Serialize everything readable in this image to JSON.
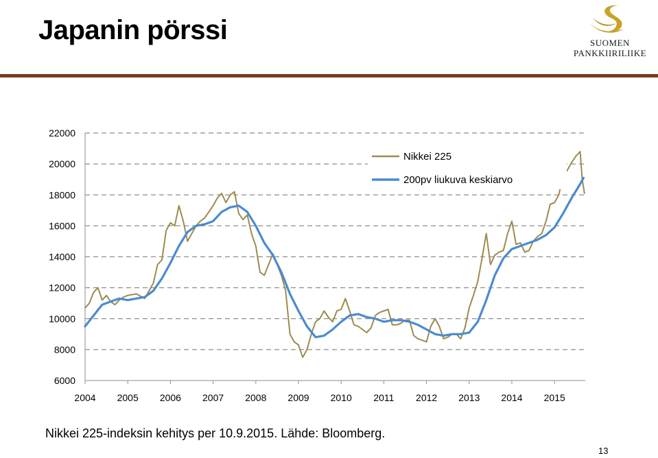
{
  "slide": {
    "title": "Japanin pörssi",
    "caption": "Nikkei 225-indeksin kehitys per 10.9.2015. Lähde: Bloomberg.",
    "page_number": "13"
  },
  "logo": {
    "line1": "SUOMEN",
    "line2": "PANKKIIRILIIKE",
    "accent_color": "#c9a227"
  },
  "chart_data": {
    "type": "line",
    "title": "",
    "xlabel": "",
    "ylabel": "",
    "xlim": [
      2004,
      2015.72
    ],
    "ylim": [
      6000,
      22000
    ],
    "x_ticks": [
      2004,
      2005,
      2006,
      2007,
      2008,
      2009,
      2010,
      2011,
      2012,
      2013,
      2014,
      2015
    ],
    "y_ticks": [
      6000,
      8000,
      10000,
      12000,
      14000,
      16000,
      18000,
      20000,
      22000
    ],
    "grid": "horizontal-dashed",
    "legend_position": "top-right",
    "series": [
      {
        "name": "Nikkei 225",
        "color": "#9c8b4e",
        "x": [
          2004.0,
          2004.1,
          2004.2,
          2004.3,
          2004.4,
          2004.5,
          2004.6,
          2004.7,
          2004.8,
          2004.9,
          2005.0,
          2005.2,
          2005.4,
          2005.5,
          2005.6,
          2005.7,
          2005.8,
          2005.9,
          2006.0,
          2006.1,
          2006.2,
          2006.3,
          2006.4,
          2006.5,
          2006.6,
          2006.7,
          2006.8,
          2006.9,
          2007.0,
          2007.1,
          2007.2,
          2007.3,
          2007.4,
          2007.5,
          2007.6,
          2007.7,
          2007.8,
          2007.9,
          2008.0,
          2008.1,
          2008.2,
          2008.3,
          2008.4,
          2008.5,
          2008.6,
          2008.7,
          2008.8,
          2008.9,
          2009.0,
          2009.1,
          2009.2,
          2009.3,
          2009.4,
          2009.5,
          2009.6,
          2009.7,
          2009.8,
          2009.9,
          2010.0,
          2010.1,
          2010.2,
          2010.3,
          2010.4,
          2010.5,
          2010.6,
          2010.7,
          2010.8,
          2010.9,
          2011.0,
          2011.1,
          2011.2,
          2011.3,
          2011.4,
          2011.5,
          2011.6,
          2011.7,
          2011.8,
          2011.9,
          2012.0,
          2012.1,
          2012.2,
          2012.3,
          2012.4,
          2012.5,
          2012.6,
          2012.7,
          2012.8,
          2012.9,
          2013.0,
          2013.1,
          2013.2,
          2013.3,
          2013.4,
          2013.5,
          2013.6,
          2013.7,
          2013.8,
          2013.9,
          2014.0,
          2014.1,
          2014.2,
          2014.3,
          2014.4,
          2014.5,
          2014.6,
          2014.7,
          2014.8,
          2014.9,
          2015.0,
          2015.1,
          2015.2,
          2015.3,
          2015.4,
          2015.5,
          2015.6,
          2015.65,
          2015.7
        ],
        "y": [
          10700,
          11000,
          11700,
          12000,
          11200,
          11500,
          11100,
          10900,
          11200,
          11400,
          11500,
          11600,
          11300,
          11800,
          12300,
          13500,
          13800,
          15700,
          16200,
          16000,
          17300,
          16300,
          15000,
          15500,
          16000,
          16300,
          16500,
          16900,
          17300,
          17800,
          18100,
          17500,
          18000,
          18200,
          16800,
          16400,
          16700,
          15500,
          14700,
          13000,
          12800,
          13500,
          14200,
          13500,
          12800,
          11800,
          9000,
          8500,
          8300,
          7500,
          8000,
          9000,
          9800,
          10000,
          10500,
          10100,
          9800,
          10500,
          10600,
          11300,
          10500,
          9600,
          9500,
          9300,
          9100,
          9400,
          10200,
          10400,
          10500,
          10600,
          9600,
          9600,
          9700,
          9900,
          9900,
          8900,
          8700,
          8600,
          8500,
          9500,
          10000,
          9500,
          8700,
          8800,
          9000,
          9000,
          8700,
          9400,
          10700,
          11500,
          12400,
          13900,
          15500,
          13500,
          14100,
          14300,
          14400,
          15500,
          16300,
          14800,
          14900,
          14300,
          14400,
          15000,
          15300,
          15500,
          16300,
          17400,
          17500,
          18000,
          19300,
          19600,
          20100,
          20500,
          20800,
          19000,
          18100
        ]
      },
      {
        "name": "200pv liukuva keskiarvo",
        "color": "#4a8bd1",
        "x": [
          2004.0,
          2004.2,
          2004.4,
          2004.6,
          2004.8,
          2005.0,
          2005.2,
          2005.4,
          2005.6,
          2005.8,
          2006.0,
          2006.2,
          2006.4,
          2006.6,
          2006.8,
          2007.0,
          2007.2,
          2007.4,
          2007.6,
          2007.8,
          2008.0,
          2008.2,
          2008.4,
          2008.6,
          2008.8,
          2009.0,
          2009.2,
          2009.4,
          2009.6,
          2009.8,
          2010.0,
          2010.2,
          2010.4,
          2010.6,
          2010.8,
          2011.0,
          2011.2,
          2011.4,
          2011.6,
          2011.8,
          2012.0,
          2012.2,
          2012.4,
          2012.6,
          2012.8,
          2013.0,
          2013.2,
          2013.4,
          2013.6,
          2013.8,
          2014.0,
          2014.2,
          2014.4,
          2014.6,
          2014.8,
          2015.0,
          2015.2,
          2015.4,
          2015.6,
          2015.68
        ],
        "y": [
          9500,
          10200,
          10900,
          11100,
          11300,
          11200,
          11300,
          11400,
          11800,
          12600,
          13600,
          14700,
          15600,
          16000,
          16100,
          16300,
          16900,
          17200,
          17300,
          16900,
          16000,
          14900,
          14100,
          13000,
          11600,
          10500,
          9500,
          8800,
          8900,
          9300,
          9800,
          10200,
          10300,
          10100,
          10000,
          9800,
          9900,
          9900,
          9800,
          9600,
          9300,
          9000,
          8900,
          9000,
          9000,
          9100,
          9800,
          11200,
          12800,
          13900,
          14500,
          14700,
          14900,
          15100,
          15400,
          15900,
          16800,
          17800,
          18700,
          19100
        ]
      }
    ]
  }
}
